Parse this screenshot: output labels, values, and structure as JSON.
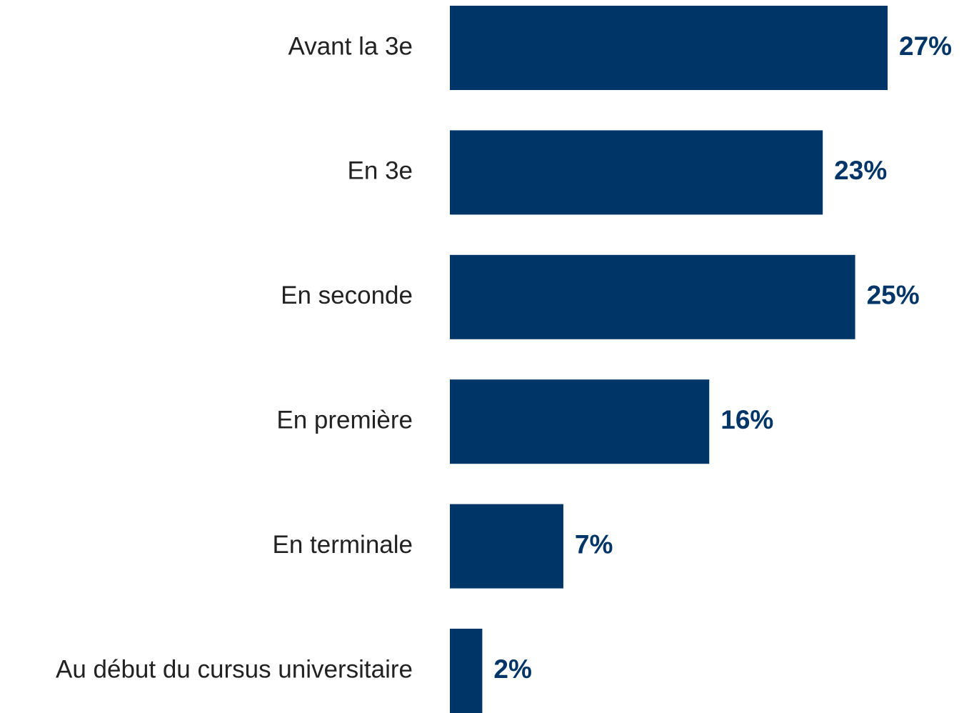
{
  "chart_data": {
    "type": "bar",
    "orientation": "horizontal",
    "categories": [
      "Avant la 3e",
      "En 3e",
      "En seconde",
      "En première",
      "En terminale",
      "Au début du cursus universitaire"
    ],
    "values": [
      27,
      23,
      25,
      16,
      7,
      2
    ],
    "value_labels": [
      "27%",
      "23%",
      "25%",
      "16%",
      "7%",
      "2%"
    ],
    "color": "#003567"
  }
}
